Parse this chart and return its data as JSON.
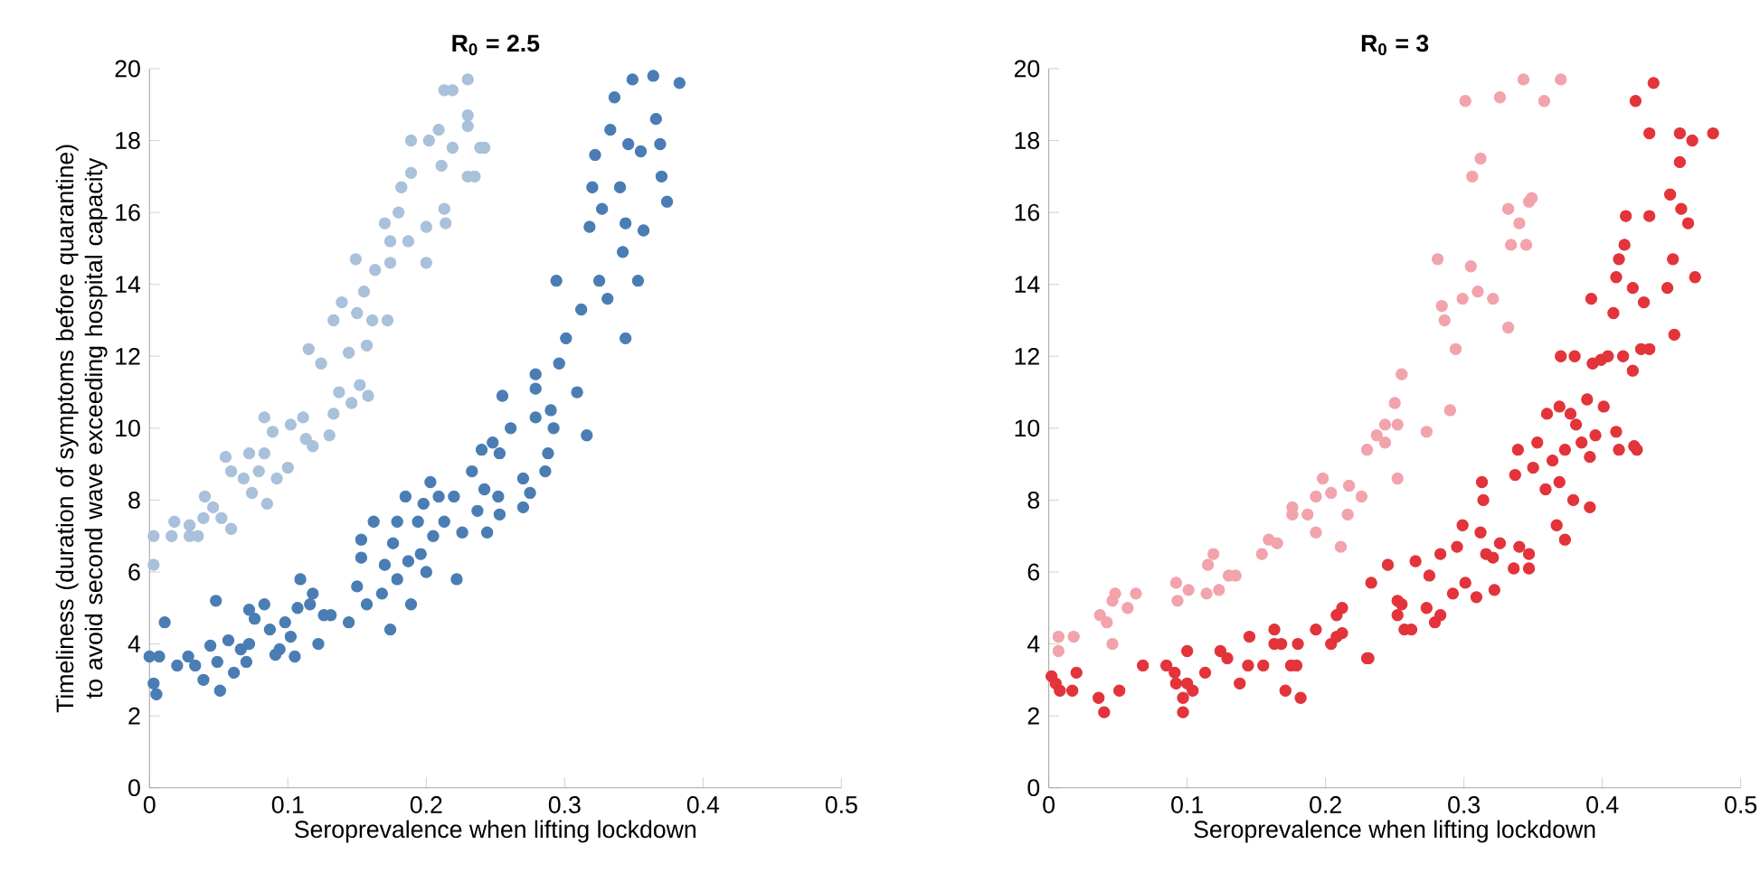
{
  "chart_data": [
    {
      "type": "scatter",
      "title": "R$_{0}$ = 2.5",
      "xlabel": "Seroprevalence when lifting lockdown",
      "ylabel": "Timeliness (duration of symptoms before quarantine) to avoid second wave exceeding hospital capacity",
      "xlim": [
        0,
        0.5
      ],
      "ylim": [
        0,
        20
      ],
      "xticks": [
        0,
        0.1,
        0.2,
        0.3,
        0.4,
        0.5
      ],
      "yticks": [
        0,
        2,
        4,
        6,
        8,
        10,
        12,
        14,
        16,
        18,
        20
      ],
      "marker": "circle",
      "series": [
        {
          "color": "#a9c1da",
          "x": [
            0.003,
            0.003,
            0.016,
            0.029,
            0.035,
            0.018,
            0.029,
            0.039,
            0.04,
            0.046,
            0.052,
            0.059,
            0.055,
            0.059,
            0.068,
            0.072,
            0.074,
            0.079,
            0.083,
            0.083,
            0.085,
            0.089,
            0.092,
            0.1,
            0.102,
            0.111,
            0.115,
            0.113,
            0.118,
            0.124,
            0.13,
            0.133,
            0.133,
            0.137,
            0.139,
            0.144,
            0.146,
            0.149,
            0.15,
            0.152,
            0.155,
            0.157,
            0.158,
            0.161,
            0.163,
            0.17,
            0.172,
            0.174,
            0.174,
            0.18,
            0.182,
            0.187,
            0.189,
            0.189,
            0.2,
            0.2,
            0.202,
            0.209,
            0.211,
            0.213,
            0.213,
            0.214,
            0.219,
            0.219,
            0.23,
            0.23,
            0.23,
            0.23,
            0.239,
            0.235,
            0.242
          ],
          "values": [
            6.2,
            7.0,
            7.0,
            7.0,
            7.0,
            7.4,
            7.3,
            7.5,
            8.1,
            7.8,
            7.5,
            7.2,
            9.2,
            8.8,
            8.6,
            9.3,
            8.2,
            8.8,
            9.3,
            10.3,
            7.9,
            9.9,
            8.6,
            8.9,
            10.1,
            10.3,
            12.2,
            9.7,
            9.5,
            11.8,
            9.8,
            13.0,
            10.4,
            11.0,
            13.5,
            12.1,
            10.7,
            14.7,
            13.2,
            11.2,
            13.8,
            12.3,
            10.9,
            13.0,
            14.4,
            15.7,
            13.0,
            14.6,
            15.2,
            16.0,
            16.7,
            15.2,
            17.1,
            18.0,
            14.6,
            15.6,
            18.0,
            18.3,
            17.3,
            19.4,
            16.1,
            15.7,
            19.4,
            17.8,
            19.7,
            18.7,
            17.0,
            18.4,
            17.8,
            17.0,
            17.8
          ]
        },
        {
          "color": "#4a7db3",
          "x": [
            0.0,
            0.003,
            0.005,
            0.007,
            0.011,
            0.02,
            0.028,
            0.033,
            0.039,
            0.044,
            0.048,
            0.049,
            0.051,
            0.057,
            0.061,
            0.066,
            0.07,
            0.072,
            0.072,
            0.076,
            0.083,
            0.087,
            0.091,
            0.094,
            0.098,
            0.102,
            0.105,
            0.107,
            0.109,
            0.116,
            0.118,
            0.122,
            0.126,
            0.131,
            0.144,
            0.15,
            0.153,
            0.153,
            0.157,
            0.162,
            0.168,
            0.17,
            0.174,
            0.176,
            0.179,
            0.179,
            0.185,
            0.187,
            0.189,
            0.194,
            0.196,
            0.198,
            0.2,
            0.203,
            0.205,
            0.209,
            0.213,
            0.22,
            0.222,
            0.226,
            0.233,
            0.237,
            0.24,
            0.242,
            0.248,
            0.252,
            0.255,
            0.244,
            0.253,
            0.253,
            0.261,
            0.27,
            0.27,
            0.275,
            0.279,
            0.279,
            0.279,
            0.286,
            0.288,
            0.29,
            0.292,
            0.294,
            0.296,
            0.301,
            0.309,
            0.312,
            0.316,
            0.318,
            0.32,
            0.322,
            0.325,
            0.327,
            0.331,
            0.333,
            0.336,
            0.34,
            0.342,
            0.344,
            0.344,
            0.346,
            0.349,
            0.353,
            0.355,
            0.357,
            0.364,
            0.366,
            0.369,
            0.37,
            0.374,
            0.383
          ],
          "values": [
            3.65,
            2.9,
            2.6,
            3.65,
            4.6,
            3.4,
            3.65,
            3.4,
            3.0,
            3.95,
            5.2,
            3.5,
            2.7,
            4.1,
            3.2,
            3.85,
            3.5,
            4.0,
            4.95,
            4.7,
            5.1,
            4.4,
            3.7,
            3.85,
            4.6,
            4.2,
            3.65,
            5.0,
            5.8,
            5.1,
            5.4,
            4.0,
            4.8,
            4.8,
            4.6,
            5.6,
            6.9,
            6.4,
            5.1,
            7.4,
            5.4,
            6.2,
            4.4,
            6.8,
            7.4,
            5.8,
            8.1,
            6.3,
            5.1,
            7.4,
            6.5,
            7.9,
            6.0,
            8.5,
            7.0,
            8.1,
            7.4,
            8.1,
            5.8,
            7.1,
            8.8,
            7.7,
            9.4,
            8.3,
            9.6,
            8.1,
            10.9,
            7.1,
            7.6,
            9.3,
            10.0,
            7.8,
            8.6,
            8.2,
            11.1,
            10.3,
            11.5,
            8.8,
            9.3,
            10.5,
            10.0,
            14.1,
            11.8,
            12.5,
            11.0,
            13.3,
            9.8,
            15.6,
            16.7,
            17.6,
            14.1,
            16.1,
            13.6,
            18.3,
            19.2,
            16.7,
            14.9,
            12.5,
            15.7,
            17.9,
            19.7,
            14.1,
            17.7,
            15.5,
            19.8,
            18.6,
            17.9,
            17.0,
            16.3,
            19.6
          ]
        }
      ]
    },
    {
      "type": "scatter",
      "title": "R$_{0}$ = 3",
      "xlabel": "Seroprevalence when lifting lockdown",
      "xlim": [
        0,
        0.5
      ],
      "ylim": [
        0,
        20
      ],
      "xticks": [
        0,
        0.1,
        0.2,
        0.3,
        0.4,
        0.5
      ],
      "yticks": [
        0,
        2,
        4,
        6,
        8,
        10,
        12,
        14,
        16,
        18,
        20
      ],
      "marker": "circle",
      "series": [
        {
          "color": "#f2a3ab",
          "x": [
            0.007,
            0.007,
            0.018,
            0.037,
            0.042,
            0.046,
            0.046,
            0.048,
            0.057,
            0.063,
            0.092,
            0.093,
            0.101,
            0.114,
            0.115,
            0.119,
            0.123,
            0.13,
            0.135,
            0.154,
            0.159,
            0.165,
            0.176,
            0.176,
            0.187,
            0.193,
            0.193,
            0.198,
            0.204,
            0.211,
            0.216,
            0.217,
            0.226,
            0.23,
            0.237,
            0.243,
            0.243,
            0.25,
            0.252,
            0.252,
            0.255,
            0.273,
            0.281,
            0.284,
            0.286,
            0.29,
            0.294,
            0.299,
            0.301,
            0.305,
            0.306,
            0.31,
            0.312,
            0.321,
            0.326,
            0.332,
            0.332,
            0.334,
            0.34,
            0.343,
            0.345,
            0.347,
            0.349,
            0.358,
            0.37
          ],
          "values": [
            3.8,
            4.2,
            4.2,
            4.8,
            4.6,
            5.2,
            4.0,
            5.4,
            5.0,
            5.4,
            5.7,
            5.2,
            5.5,
            5.4,
            6.2,
            6.5,
            5.5,
            5.9,
            5.9,
            6.5,
            6.9,
            6.8,
            7.8,
            7.6,
            7.6,
            7.1,
            8.1,
            8.6,
            8.2,
            6.7,
            7.6,
            8.4,
            8.1,
            9.4,
            9.8,
            9.6,
            10.1,
            10.7,
            10.1,
            8.6,
            11.5,
            9.9,
            14.7,
            13.4,
            13.0,
            10.5,
            12.2,
            13.6,
            19.1,
            14.5,
            17.0,
            13.8,
            17.5,
            13.6,
            19.2,
            16.1,
            12.8,
            15.1,
            15.7,
            19.7,
            15.1,
            16.3,
            16.4,
            19.1,
            19.7
          ]
        },
        {
          "color": "#e2343a",
          "x": [
            0.002,
            0.005,
            0.008,
            0.017,
            0.02,
            0.036,
            0.04,
            0.051,
            0.068,
            0.085,
            0.091,
            0.092,
            0.097,
            0.097,
            0.1,
            0.1,
            0.104,
            0.113,
            0.124,
            0.129,
            0.138,
            0.145,
            0.144,
            0.155,
            0.163,
            0.163,
            0.168,
            0.171,
            0.175,
            0.18,
            0.182,
            0.179,
            0.193,
            0.204,
            0.208,
            0.208,
            0.212,
            0.23,
            0.233,
            0.245,
            0.252,
            0.252,
            0.212,
            0.231,
            0.255,
            0.257,
            0.262,
            0.265,
            0.273,
            0.275,
            0.279,
            0.283,
            0.283,
            0.292,
            0.295,
            0.299,
            0.301,
            0.309,
            0.312,
            0.313,
            0.314,
            0.316,
            0.321,
            0.322,
            0.326,
            0.336,
            0.337,
            0.339,
            0.34,
            0.347,
            0.347,
            0.35,
            0.353,
            0.359,
            0.36,
            0.364,
            0.367,
            0.369,
            0.369,
            0.373,
            0.373,
            0.377,
            0.379,
            0.381,
            0.385,
            0.389,
            0.391,
            0.391,
            0.392,
            0.37,
            0.38,
            0.395,
            0.393,
            0.399,
            0.401,
            0.404,
            0.408,
            0.41,
            0.41,
            0.412,
            0.412,
            0.415,
            0.416,
            0.417,
            0.422,
            0.422,
            0.423,
            0.425,
            0.424,
            0.428,
            0.43,
            0.434,
            0.434,
            0.434,
            0.437,
            0.447,
            0.449,
            0.451,
            0.452,
            0.456,
            0.456,
            0.457,
            0.462,
            0.465,
            0.467,
            0.48
          ],
          "values": [
            3.1,
            2.9,
            2.7,
            2.7,
            3.2,
            2.5,
            2.1,
            2.7,
            3.4,
            3.4,
            3.2,
            2.9,
            2.5,
            2.1,
            3.8,
            2.9,
            2.7,
            3.2,
            3.8,
            3.6,
            2.9,
            4.2,
            3.4,
            3.4,
            4.4,
            4.0,
            4.0,
            2.7,
            3.4,
            4.0,
            2.5,
            3.4,
            4.4,
            4.0,
            4.2,
            4.8,
            5.0,
            3.6,
            5.7,
            6.2,
            5.2,
            4.8,
            4.3,
            3.6,
            5.1,
            4.4,
            4.4,
            6.3,
            5.0,
            5.9,
            4.6,
            4.8,
            6.5,
            5.4,
            6.7,
            7.3,
            5.7,
            5.3,
            7.1,
            8.5,
            8.0,
            6.5,
            6.4,
            5.5,
            6.8,
            6.1,
            8.7,
            9.4,
            6.7,
            6.5,
            6.1,
            8.9,
            9.6,
            8.3,
            10.4,
            9.1,
            7.3,
            10.6,
            8.5,
            6.9,
            9.4,
            10.4,
            8.0,
            10.1,
            9.6,
            10.8,
            9.2,
            7.8,
            13.6,
            12.0,
            12.0,
            9.8,
            11.8,
            11.9,
            10.6,
            12.0,
            13.2,
            14.2,
            9.9,
            9.4,
            14.7,
            12.0,
            15.1,
            15.9,
            11.6,
            13.9,
            9.5,
            9.4,
            19.1,
            12.2,
            13.5,
            15.9,
            18.2,
            12.2,
            19.6,
            13.9,
            16.5,
            14.7,
            12.6,
            17.4,
            18.2,
            16.1,
            15.7,
            18.0,
            14.2,
            18.2
          ]
        }
      ]
    }
  ]
}
